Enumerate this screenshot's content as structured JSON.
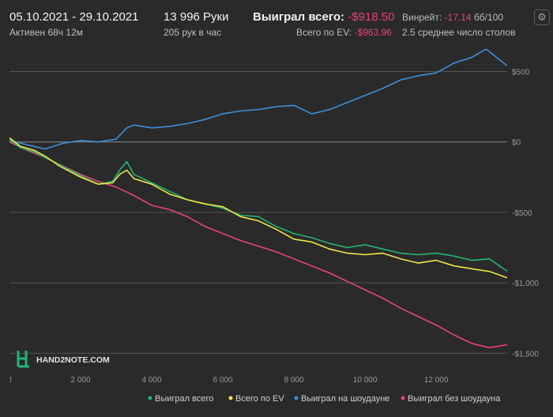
{
  "header": {
    "date_range": "05.10.2021 - 29.10.2021",
    "active_time": "Активен 68ч 12м",
    "hands": "13 996 Руки",
    "hands_per_hour": "205 рук в час",
    "won_total_label": "Выиграл всего:",
    "won_total_value": "-$918.50",
    "ev_total_label": "Всего по EV:",
    "ev_total_value": "-$963.96",
    "winrate_label": "Винрейт:",
    "winrate_value": "-17.14",
    "winrate_unit": "бб/100",
    "avg_tables": "2.5 среднее число столов",
    "settings_icon": "gear-icon"
  },
  "logo": {
    "text": "HAND2NOTE.COM"
  },
  "colors": {
    "background": "#2a2a2a",
    "negative": "#e8436f",
    "won_total": "#22b573",
    "ev_total": "#f0e442",
    "showdown": "#3a8fd9",
    "non_showdown": "#e8436f"
  },
  "chart_data": {
    "type": "line",
    "x_ticks": [
      0,
      2000,
      4000,
      6000,
      8000,
      10000,
      12000
    ],
    "x_tick_labels": [
      "0",
      "2 000",
      "4 000",
      "6 000",
      "8 000",
      "10 000",
      "12 000"
    ],
    "xlim": [
      0,
      13996
    ],
    "y_ticks": [
      500,
      0,
      -500,
      -1000,
      -1500
    ],
    "y_tick_labels": [
      "$500",
      "$0",
      "-$500",
      "-$1,000",
      "-$1,500"
    ],
    "ylim": [
      -1560,
      660
    ],
    "grid": "horizontal",
    "legend_position": "bottom-right",
    "series": [
      {
        "name": "Выиграл всего",
        "color": "#22b573",
        "x": [
          0,
          300,
          700,
          1000,
          1400,
          2000,
          2500,
          2900,
          3100,
          3300,
          3500,
          4000,
          4500,
          5000,
          5500,
          6000,
          6500,
          7000,
          7500,
          8000,
          8500,
          9000,
          9500,
          10000,
          10500,
          11000,
          11500,
          12000,
          12500,
          13000,
          13500,
          13996
        ],
        "y": [
          20,
          -40,
          -70,
          -110,
          -160,
          -240,
          -300,
          -280,
          -200,
          -140,
          -230,
          -290,
          -350,
          -410,
          -440,
          -470,
          -520,
          -530,
          -600,
          -650,
          -680,
          -720,
          -750,
          -730,
          -760,
          -790,
          -800,
          -790,
          -810,
          -840,
          -830,
          -918
        ]
      },
      {
        "name": "Всего по EV",
        "color": "#f0e442",
        "x": [
          0,
          300,
          700,
          1000,
          1400,
          2000,
          2500,
          2900,
          3100,
          3300,
          3500,
          4000,
          4500,
          5000,
          5500,
          6000,
          6500,
          7000,
          7500,
          8000,
          8500,
          9000,
          9500,
          10000,
          10500,
          11000,
          11500,
          12000,
          12500,
          13000,
          13500,
          13996
        ],
        "y": [
          30,
          -30,
          -60,
          -100,
          -170,
          -250,
          -300,
          -290,
          -230,
          -200,
          -260,
          -300,
          -370,
          -410,
          -440,
          -460,
          -530,
          -560,
          -620,
          -690,
          -710,
          -760,
          -790,
          -800,
          -790,
          -830,
          -860,
          -840,
          -880,
          -900,
          -920,
          -964
        ]
      },
      {
        "name": "Выиграл на шоудауне",
        "color": "#3a8fd9",
        "x": [
          0,
          500,
          1000,
          1500,
          2000,
          2500,
          3000,
          3300,
          3500,
          4000,
          4500,
          5000,
          5500,
          6000,
          6500,
          7000,
          7500,
          8000,
          8500,
          9000,
          9500,
          10000,
          10500,
          11000,
          11500,
          12000,
          12500,
          13000,
          13400,
          13700,
          13996
        ],
        "y": [
          10,
          -20,
          -50,
          -10,
          10,
          0,
          20,
          100,
          120,
          100,
          110,
          130,
          160,
          200,
          220,
          230,
          250,
          260,
          200,
          230,
          280,
          330,
          380,
          440,
          470,
          490,
          560,
          600,
          660,
          600,
          540
        ]
      },
      {
        "name": "Выиграл без шоудауна",
        "color": "#e8436f",
        "x": [
          0,
          500,
          1000,
          1500,
          2000,
          2500,
          3000,
          3500,
          4000,
          4500,
          5000,
          5500,
          6000,
          6500,
          7000,
          7500,
          8000,
          8500,
          9000,
          9500,
          10000,
          10500,
          11000,
          11500,
          12000,
          12500,
          13000,
          13500,
          13996
        ],
        "y": [
          0,
          -60,
          -110,
          -170,
          -230,
          -280,
          -320,
          -380,
          -450,
          -480,
          -530,
          -600,
          -650,
          -700,
          -740,
          -780,
          -830,
          -880,
          -930,
          -990,
          -1050,
          -1110,
          -1180,
          -1240,
          -1300,
          -1370,
          -1430,
          -1460,
          -1440
        ]
      }
    ]
  }
}
